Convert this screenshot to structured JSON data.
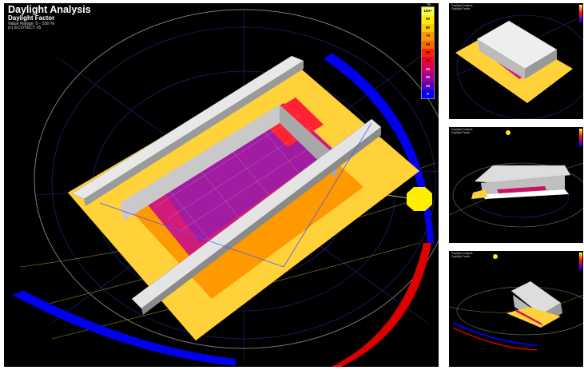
{
  "header": {
    "title": "Daylight Analysis",
    "subtitle": "Daylight Factor",
    "value_range": "Value Range: 0 - 100 %",
    "copyright": "(c) ECOTECT v5"
  },
  "legend": {
    "unit": "%",
    "entries": [
      {
        "label": "100+",
        "color": "#ffff55"
      },
      {
        "label": "90",
        "color": "#ffee00"
      },
      {
        "label": "80",
        "color": "#ffcc00"
      },
      {
        "label": "70",
        "color": "#ff9900"
      },
      {
        "label": "60",
        "color": "#ff6600"
      },
      {
        "label": "50",
        "color": "#ff2200"
      },
      {
        "label": "40",
        "color": "#ee0033"
      },
      {
        "label": "30",
        "color": "#cc0066"
      },
      {
        "label": "20",
        "color": "#990099"
      },
      {
        "label": "10",
        "color": "#5500bb"
      },
      {
        "label": "0",
        "color": "#0000ff"
      }
    ]
  },
  "thumbnails": [
    {
      "label": "Daylight Analysis\nDaylight Factor"
    },
    {
      "label": "Daylight Analysis\nDaylight Factor"
    },
    {
      "label": "Daylight Analysis\nDaylight Factor"
    }
  ]
}
